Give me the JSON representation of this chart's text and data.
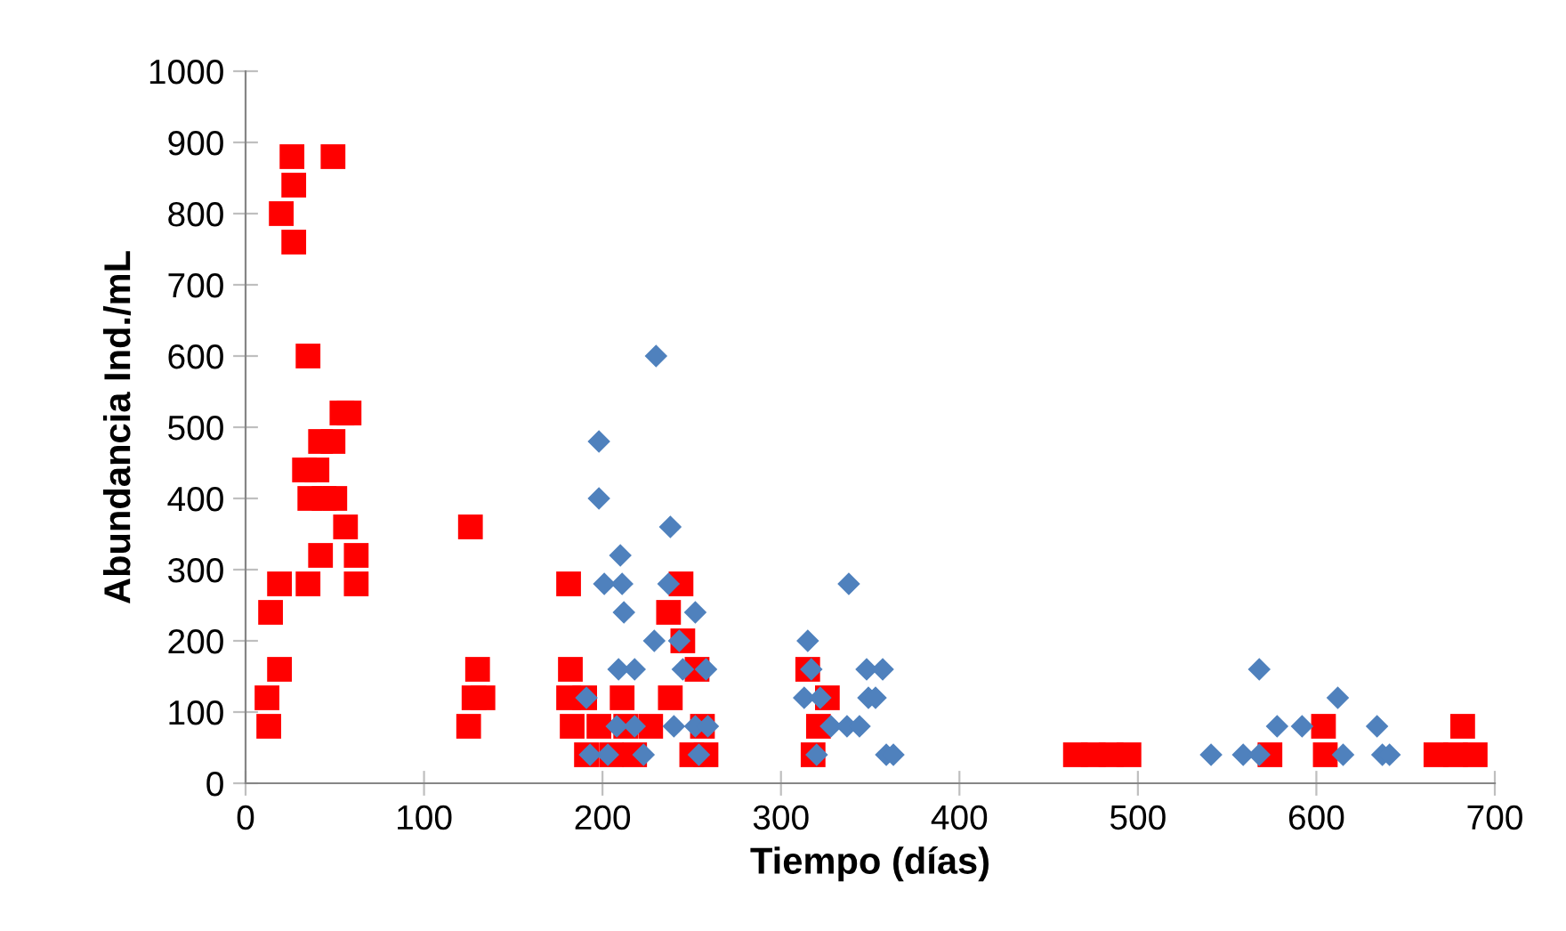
{
  "chart_data": {
    "type": "scatter",
    "xlabel": "Tiempo (días)",
    "ylabel": "Abundancia Ind./mL",
    "xlim": [
      0,
      700
    ],
    "xticks": [
      0,
      100,
      200,
      300,
      400,
      500,
      600,
      700
    ],
    "ylim": [
      0,
      1000
    ],
    "yticks": [
      0,
      100,
      200,
      300,
      400,
      500,
      600,
      700,
      800,
      900,
      1000
    ],
    "grid": false,
    "series": [
      {
        "color": "#ff0000",
        "marker": "square",
        "x": [
          26,
          49,
          27,
          20,
          27,
          35,
          54,
          58,
          42,
          49,
          33,
          40,
          36,
          44,
          50,
          56,
          126,
          42,
          62,
          19,
          35,
          62,
          14,
          19,
          130,
          12,
          128,
          133,
          13,
          125,
          181,
          182,
          181,
          190,
          211,
          183,
          198,
          213,
          227,
          191,
          205,
          218,
          244,
          237,
          245,
          253,
          315,
          238,
          326,
          256,
          321,
          250,
          258,
          318,
          604,
          682,
          465,
          475,
          485,
          495,
          574,
          605,
          667,
          678,
          689
        ],
        "values": [
          880,
          880,
          840,
          800,
          760,
          600,
          520,
          520,
          480,
          480,
          440,
          440,
          400,
          400,
          400,
          360,
          360,
          320,
          320,
          280,
          280,
          280,
          240,
          160,
          160,
          120,
          120,
          120,
          80,
          80,
          280,
          160,
          120,
          120,
          120,
          80,
          80,
          80,
          80,
          40,
          40,
          40,
          280,
          240,
          200,
          160,
          160,
          120,
          120,
          80,
          80,
          40,
          40,
          40,
          80,
          80,
          40,
          40,
          40,
          40,
          40,
          40,
          40,
          40,
          40
        ]
      },
      {
        "color": "#4f81bd",
        "marker": "diamond",
        "x": [
          230,
          198,
          198,
          238,
          210,
          201,
          211,
          237,
          338,
          212,
          252,
          229,
          243,
          315,
          209,
          218,
          245,
          258,
          317,
          348,
          357,
          191,
          313,
          322,
          349,
          353,
          208,
          218,
          240,
          252,
          259,
          328,
          337,
          344,
          193,
          203,
          223,
          254,
          320,
          359,
          363,
          568,
          612,
          578,
          592,
          634,
          541,
          559,
          568,
          615,
          637,
          641
        ],
        "values": [
          600,
          480,
          400,
          360,
          320,
          280,
          280,
          280,
          280,
          240,
          240,
          200,
          200,
          200,
          160,
          160,
          160,
          160,
          160,
          160,
          160,
          120,
          120,
          120,
          120,
          120,
          80,
          80,
          80,
          80,
          80,
          80,
          80,
          80,
          40,
          40,
          40,
          40,
          40,
          40,
          40,
          160,
          120,
          80,
          80,
          80,
          40,
          40,
          40,
          40,
          40,
          40
        ]
      }
    ]
  }
}
